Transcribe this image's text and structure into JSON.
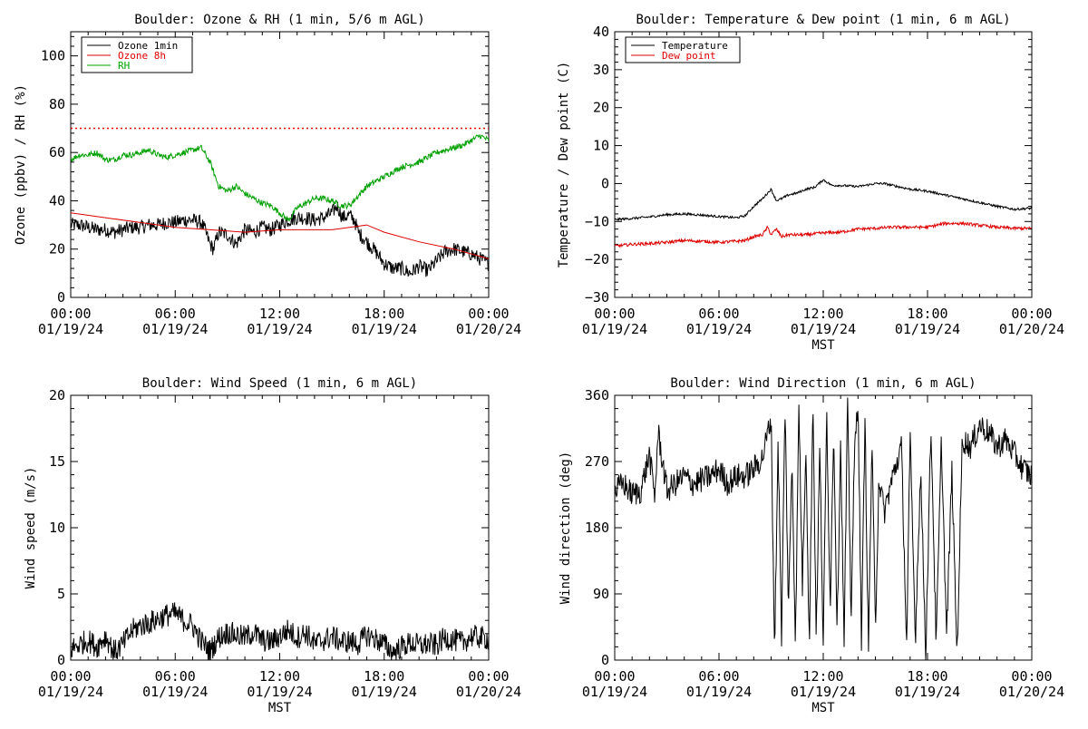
{
  "chart_data": [
    {
      "id": "ozone",
      "type": "line",
      "title": "Boulder: Ozone & RH (1 min, 5/6 m AGL)",
      "xlabel": "",
      "ylabel": "Ozone (ppbv) / RH (%)",
      "xlim": [
        0,
        24
      ],
      "ylim": [
        0,
        110
      ],
      "yticks": [
        "0",
        "20",
        "40",
        "60",
        "80",
        "100"
      ],
      "ytick_values": [
        0,
        20,
        40,
        60,
        80,
        100
      ],
      "xtick_hours": [
        0,
        6,
        12,
        18,
        24
      ],
      "xtick_time": [
        "00:00",
        "06:00",
        "12:00",
        "18:00",
        "00:00"
      ],
      "xtick_date": [
        "01/19/24",
        "01/19/24",
        "01/19/24",
        "01/19/24",
        "01/20/24"
      ],
      "legend_position": "top-left",
      "reference_line": {
        "y": 70,
        "color": "#dd0000",
        "style": "dotted"
      },
      "series": [
        {
          "name": "Ozone 1min",
          "color": "#000000",
          "x": [
            0,
            0.5,
            1,
            1.5,
            2,
            2.5,
            3,
            3.5,
            4,
            4.5,
            5,
            5.5,
            6,
            6.5,
            7,
            7.5,
            7.7,
            8,
            8.2,
            8.5,
            9,
            9.5,
            10,
            10.5,
            11,
            11.5,
            12,
            12.5,
            13,
            13.5,
            14,
            14.5,
            15,
            15.3,
            15.6,
            16,
            16.3,
            16.5,
            17,
            17.5,
            18,
            18.5,
            19,
            19.5,
            20,
            20.5,
            21,
            21.5,
            22,
            22.5,
            23,
            23.5,
            24
          ],
          "y": [
            30,
            30,
            29,
            28,
            28,
            27,
            28,
            29,
            29,
            30,
            30,
            31,
            31,
            32,
            32,
            31,
            28,
            22,
            20,
            27,
            26,
            22,
            28,
            27,
            29,
            28,
            30,
            32,
            33,
            33,
            32,
            33,
            35,
            38,
            33,
            34,
            32,
            27,
            23,
            19,
            14,
            12,
            12,
            10,
            13,
            11,
            15,
            19,
            20,
            19,
            18,
            16,
            14
          ]
        },
        {
          "name": "Ozone 8h",
          "color": "#dd0000",
          "x": [
            0,
            2,
            4,
            6,
            8,
            10,
            12,
            14,
            15,
            16,
            17,
            18,
            20,
            22,
            24
          ],
          "y": [
            35,
            33,
            31,
            29,
            28,
            27,
            28,
            28,
            28,
            29,
            30,
            27,
            23,
            20,
            16
          ]
        },
        {
          "name": "RH",
          "color": "#00a000",
          "x": [
            0,
            0.5,
            1,
            1.5,
            2,
            2.5,
            3,
            3.5,
            4,
            4.5,
            5,
            5.5,
            6,
            6.5,
            7,
            7.5,
            8,
            8.5,
            9,
            9.5,
            10,
            10.5,
            11,
            11.5,
            12,
            12.5,
            13,
            13.5,
            14,
            14.5,
            15,
            15.5,
            16,
            16.5,
            17,
            17.5,
            18,
            18.5,
            19,
            19.5,
            20,
            20.5,
            21,
            21.5,
            22,
            22.5,
            23,
            23.5,
            24
          ],
          "y": [
            57,
            59,
            59,
            60,
            57,
            57,
            59,
            59,
            60,
            61,
            59,
            58,
            59,
            60,
            61,
            62,
            56,
            46,
            44,
            46,
            43,
            41,
            39,
            38,
            35,
            32,
            37,
            39,
            41,
            41,
            40,
            38,
            38,
            42,
            46,
            48,
            50,
            52,
            54,
            55,
            56,
            58,
            60,
            61,
            62,
            63,
            65,
            67,
            65
          ]
        }
      ]
    },
    {
      "id": "temp",
      "type": "line",
      "title": "Boulder: Temperature & Dew point (1 min, 6 m AGL)",
      "xlabel": "MST",
      "ylabel": "Temperature / Dew point (C)",
      "xlim": [
        0,
        24
      ],
      "ylim": [
        -30,
        40
      ],
      "yticks": [
        "−30",
        "−20",
        "−10",
        "0",
        "10",
        "20",
        "30",
        "40"
      ],
      "ytick_values": [
        -30,
        -20,
        -10,
        0,
        10,
        20,
        30,
        40
      ],
      "xtick_hours": [
        0,
        6,
        12,
        18,
        24
      ],
      "xtick_time": [
        "00:00",
        "06:00",
        "12:00",
        "18:00",
        "00:00"
      ],
      "xtick_date": [
        "01/19/24",
        "01/19/24",
        "01/19/24",
        "01/19/24",
        "01/20/24"
      ],
      "legend_position": "top-left",
      "series": [
        {
          "name": "Temperature",
          "color": "#000000",
          "x": [
            0,
            1,
            2,
            3,
            4,
            5,
            6,
            7,
            7.5,
            8,
            8.5,
            8.8,
            9,
            9.3,
            9.6,
            10,
            10.5,
            11,
            11.5,
            12,
            12.5,
            13,
            14,
            15,
            15.5,
            16,
            17,
            18,
            19,
            20,
            21,
            22,
            23,
            24
          ],
          "y": [
            -9.5,
            -9.2,
            -8.8,
            -8.2,
            -8,
            -8.3,
            -8.7,
            -9,
            -8.5,
            -6,
            -4,
            -2.5,
            -1.5,
            -4.5,
            -4,
            -3,
            -2.5,
            -1.5,
            -1,
            1,
            -0.5,
            -0.5,
            -0.8,
            0,
            0,
            -0.5,
            -1.5,
            -2,
            -3,
            -4,
            -5,
            -6,
            -6.8,
            -6.5
          ]
        },
        {
          "name": "Dew point",
          "color": "#dd0000",
          "x": [
            0,
            1,
            2,
            3,
            4,
            5,
            6,
            7,
            7.5,
            8,
            8.5,
            8.8,
            9,
            9.3,
            9.6,
            10,
            11,
            12,
            13,
            14,
            15,
            16,
            17,
            18,
            19,
            20,
            21,
            22,
            23,
            24
          ],
          "y": [
            -16.5,
            -16,
            -15.8,
            -15.5,
            -15,
            -15.2,
            -15.5,
            -15.2,
            -15,
            -14,
            -13.5,
            -11.5,
            -13.5,
            -12,
            -14,
            -13.5,
            -13.5,
            -13,
            -12.8,
            -12,
            -11.8,
            -11.5,
            -11.5,
            -11.5,
            -10.5,
            -10.5,
            -11,
            -11.5,
            -11.8,
            -11.8
          ]
        }
      ]
    },
    {
      "id": "wspd",
      "type": "line",
      "title": "Boulder: Wind Speed (1 min, 6 m AGL)",
      "xlabel": "MST",
      "ylabel": "Wind speed (m/s)",
      "xlim": [
        0,
        24
      ],
      "ylim": [
        0,
        20
      ],
      "yticks": [
        "0",
        "5",
        "10",
        "15",
        "20"
      ],
      "ytick_values": [
        0,
        5,
        10,
        15,
        20
      ],
      "xtick_hours": [
        0,
        6,
        12,
        18,
        24
      ],
      "xtick_time": [
        "00:00",
        "06:00",
        "12:00",
        "18:00",
        "00:00"
      ],
      "xtick_date": [
        "01/19/24",
        "01/19/24",
        "01/19/24",
        "01/19/24",
        "01/20/24"
      ],
      "series": [
        {
          "name": "",
          "color": "#000000",
          "x": [
            0,
            0.5,
            1,
            1.5,
            2,
            2.5,
            3,
            3.5,
            4,
            4.5,
            5,
            5.5,
            6,
            6.5,
            7,
            7.5,
            8,
            8.5,
            9,
            9.5,
            10,
            10.5,
            11,
            11.5,
            12,
            12.5,
            13,
            13.5,
            14,
            14.5,
            15,
            15.5,
            16,
            16.5,
            17,
            17.5,
            18,
            18.5,
            19,
            19.5,
            20,
            20.5,
            21,
            21.5,
            22,
            22.5,
            23,
            23.5,
            24
          ],
          "y": [
            0.8,
            1.2,
            1.5,
            1,
            1.8,
            0.6,
            1.2,
            2.2,
            2.6,
            2.8,
            3.1,
            3.4,
            3.5,
            3,
            2.6,
            1.4,
            0.7,
            1.7,
            2.1,
            1.9,
            1.7,
            2.1,
            1.5,
            1.4,
            1.8,
            2.3,
            1.7,
            2.1,
            1.2,
            1.5,
            1.8,
            1.4,
            1.4,
            1.2,
            1.9,
            1.6,
            1.2,
            0.6,
            1,
            1.3,
            1.1,
            1.2,
            1.1,
            1.7,
            1.5,
            1.3,
            1.8,
            1.7,
            1.6
          ]
        }
      ]
    },
    {
      "id": "wdir",
      "type": "line",
      "title": "Boulder: Wind Direction (1 min, 6 m AGL)",
      "xlabel": "MST",
      "ylabel": "Wind direction (deg)",
      "xlim": [
        0,
        24
      ],
      "ylim": [
        0,
        360
      ],
      "yticks": [
        "0",
        "90",
        "180",
        "270",
        "360"
      ],
      "ytick_values": [
        0,
        90,
        180,
        270,
        360
      ],
      "xtick_hours": [
        0,
        6,
        12,
        18,
        24
      ],
      "xtick_time": [
        "00:00",
        "06:00",
        "12:00",
        "18:00",
        "00:00"
      ],
      "xtick_date": [
        "01/19/24",
        "01/19/24",
        "01/19/24",
        "01/19/24",
        "01/20/24"
      ],
      "series": [
        {
          "name": "",
          "color": "#000000",
          "x": [
            0,
            0.5,
            1,
            1.5,
            2,
            2.3,
            2.5,
            3,
            3.5,
            4,
            4.5,
            5,
            5.5,
            6,
            6.5,
            7,
            7.5,
            8,
            8.5,
            9,
            9.2,
            9.4,
            9.6,
            9.8,
            10,
            10.2,
            10.4,
            10.6,
            10.8,
            11,
            11.2,
            11.4,
            11.6,
            11.8,
            12,
            12.2,
            12.4,
            12.6,
            12.8,
            13,
            13.2,
            13.4,
            13.6,
            13.8,
            14,
            14.2,
            14.4,
            14.6,
            14.8,
            15,
            15.2,
            15.5,
            16,
            16.5,
            16.8,
            17,
            17.3,
            17.6,
            17.9,
            18.2,
            18.5,
            18.8,
            19.1,
            19.4,
            19.7,
            20,
            20.5,
            21,
            21.5,
            22,
            22.5,
            23,
            23.5,
            24
          ],
          "y": [
            230,
            240,
            225,
            230,
            280,
            220,
            310,
            230,
            240,
            250,
            240,
            245,
            250,
            260,
            240,
            250,
            250,
            260,
            275,
            330,
            10,
            300,
            30,
            350,
            60,
            280,
            20,
            350,
            100,
            300,
            10,
            360,
            30,
            290,
            20,
            340,
            70,
            320,
            40,
            300,
            20,
            350,
            60,
            280,
            360,
            20,
            330,
            10,
            300,
            40,
            250,
            200,
            250,
            290,
            20,
            300,
            30,
            260,
            10,
            320,
            20,
            300,
            30,
            260,
            5,
            300,
            290,
            320,
            310,
            290,
            300,
            280,
            260,
            250
          ]
        }
      ]
    }
  ]
}
